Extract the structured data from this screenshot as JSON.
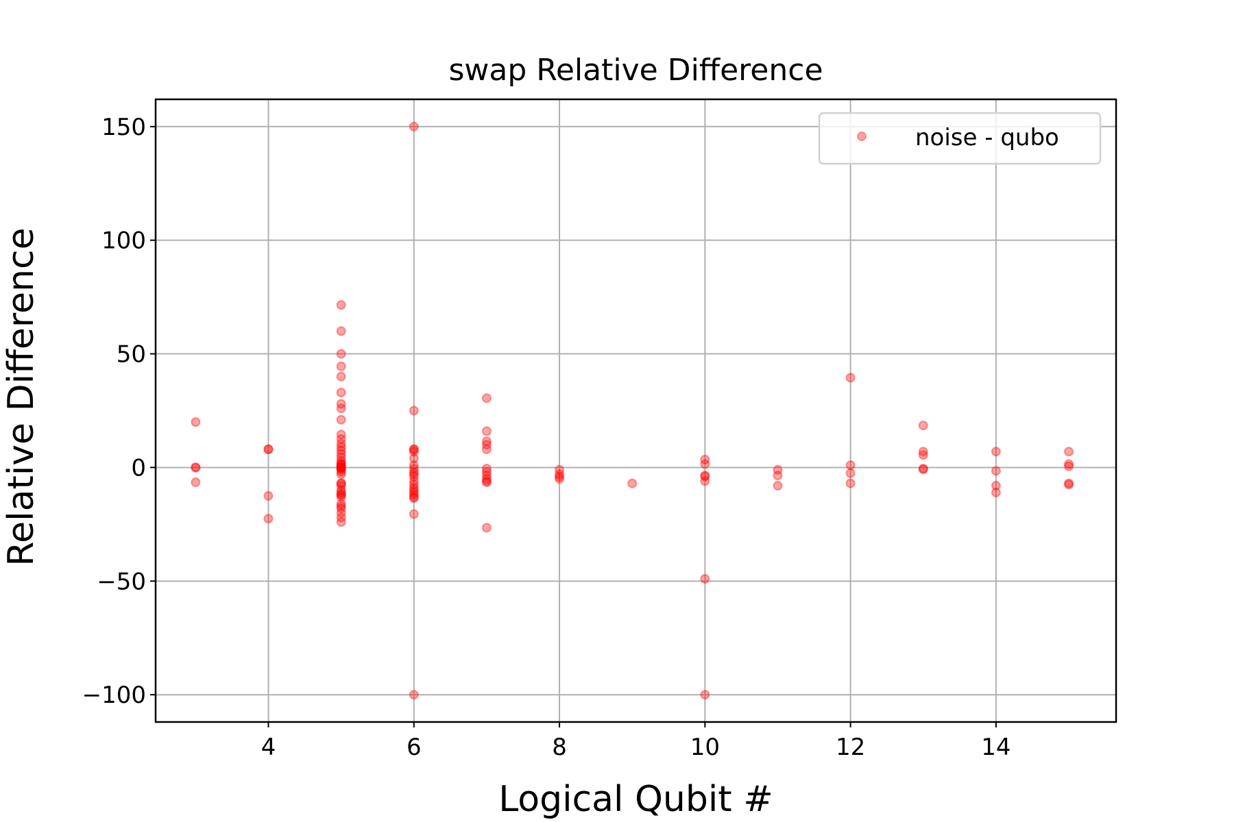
{
  "chart_data": {
    "type": "scatter",
    "title": "swap Relative Difference",
    "xlabel": "Logical Qubit #",
    "ylabel": "Relative Difference",
    "xlim": [
      2.45,
      15.65
    ],
    "ylim": [
      -112,
      162
    ],
    "xticks": [
      4,
      6,
      8,
      10,
      12,
      14
    ],
    "xtick_labels": [
      "4",
      "6",
      "8",
      "10",
      "12",
      "14"
    ],
    "yticks": [
      -100,
      -50,
      0,
      50,
      100,
      150
    ],
    "ytick_labels": [
      "−100",
      "−50",
      "0",
      "50",
      "100",
      "150"
    ],
    "grid": true,
    "legend_position": "upper right",
    "series": [
      {
        "name": "noise - qubo",
        "color": "#ff0000",
        "marker": "circle",
        "alpha": 0.35,
        "x": [
          3,
          3,
          3,
          3,
          4,
          4,
          4,
          4,
          5,
          5,
          5,
          5,
          5,
          5,
          5,
          5,
          5,
          5,
          5,
          5,
          5,
          5,
          5,
          5,
          5,
          5,
          5,
          5,
          5,
          5,
          5,
          5,
          5,
          5,
          5,
          5,
          5,
          5,
          5,
          5,
          5,
          5,
          5,
          5,
          5,
          5,
          5,
          5,
          5,
          6,
          6,
          6,
          6,
          6,
          6,
          6,
          6,
          6,
          6,
          6,
          6,
          6,
          6,
          6,
          6,
          6,
          6,
          6,
          6,
          6,
          7,
          7,
          7,
          7,
          7,
          7,
          7,
          7,
          7,
          7,
          7,
          7,
          8,
          8,
          8,
          8,
          9,
          10,
          10,
          10,
          10,
          10,
          10,
          10,
          11,
          11,
          11,
          12,
          12,
          12,
          12,
          13,
          13,
          13,
          13,
          13,
          14,
          14,
          14,
          14,
          15,
          15,
          15,
          15,
          15
        ],
        "y": [
          20,
          0,
          0,
          -6.5,
          8,
          8,
          -12.5,
          -22.5,
          71.5,
          60,
          50,
          44.5,
          40,
          33,
          28,
          26,
          21,
          14.5,
          12.5,
          10.5,
          9,
          7.5,
          6,
          4.5,
          3,
          2,
          1,
          0,
          0,
          -1,
          -3,
          -7,
          -7,
          -8,
          -10,
          -11,
          -12,
          -12,
          -13,
          -16,
          -17,
          -18,
          -20,
          -22,
          -24,
          -0.5,
          0.5,
          1.5,
          -2,
          150,
          25,
          8,
          8,
          7,
          4,
          1,
          -0.5,
          -2,
          -3,
          -4,
          -6,
          -7.5,
          -9,
          -10,
          -11,
          -12,
          -13,
          -13.5,
          -20.5,
          -100,
          30.5,
          16,
          11.5,
          10,
          8,
          -0.5,
          -2,
          -3.5,
          -5,
          -6,
          -6.5,
          -26.5,
          -1,
          -3,
          -4,
          -5,
          -7,
          3.5,
          1.5,
          -3.5,
          -4,
          -6,
          -49,
          -100,
          -1,
          -3.5,
          -8,
          39.5,
          1,
          -2.5,
          -7,
          18.5,
          7,
          5.5,
          -0.5,
          -0.8,
          7,
          -1.5,
          -8,
          -11,
          7,
          1.5,
          0.5,
          -7,
          -7.5
        ]
      }
    ]
  }
}
